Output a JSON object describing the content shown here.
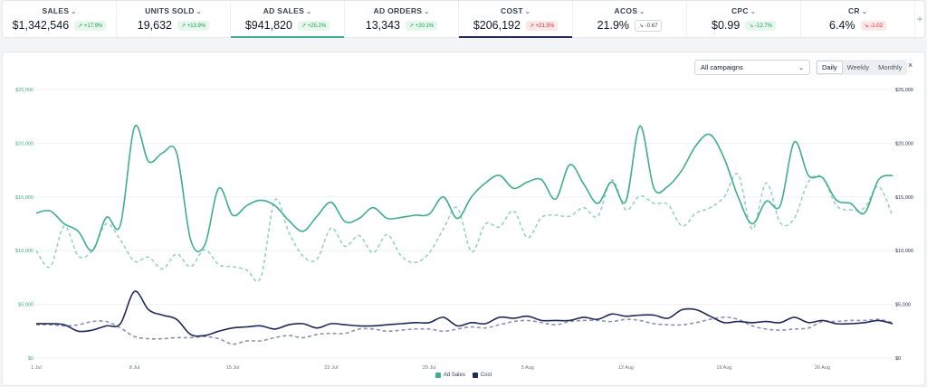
{
  "metrics": [
    {
      "label": "SALES",
      "value": "$1,342,546",
      "change": "+17.9%",
      "dir": "up"
    },
    {
      "label": "UNITS SOLD",
      "value": "19,632",
      "change": "+13.9%",
      "dir": "up"
    },
    {
      "label": "AD SALES",
      "value": "$941,820",
      "change": "+25.2%",
      "dir": "up"
    },
    {
      "label": "AD ORDERS",
      "value": "13,343",
      "change": "+20.1%",
      "dir": "up"
    },
    {
      "label": "COST",
      "value": "$206,192",
      "change": "+21.5%",
      "dir": "down"
    },
    {
      "label": "ACOS",
      "value": "21.9%",
      "change": "-0.67",
      "dir": "neutral"
    },
    {
      "label": "CPC",
      "value": "$0.99",
      "change": "-12.7%",
      "dir": "up"
    },
    {
      "label": "CR",
      "value": "6.4%",
      "change": "-1.02",
      "dir": "down"
    }
  ],
  "add_metric_icon": "+",
  "controls": {
    "campaign_select": "All campaigns",
    "periods": [
      "Daily",
      "Weekly",
      "Monthly"
    ],
    "active_period": "Daily",
    "close_icon": "×"
  },
  "colors": {
    "ad_sales": "#3fae8c",
    "ad_sales_prev": "#96d3bd",
    "cost": "#1e2a5a",
    "cost_prev": "#8e8fb5"
  },
  "chart_data": {
    "type": "line",
    "x": [
      "1 Jul",
      "2 Jul",
      "3 Jul",
      "4 Jul",
      "5 Jul",
      "6 Jul",
      "7 Jul",
      "8 Jul",
      "9 Jul",
      "10 Jul",
      "11 Jul",
      "12 Jul",
      "13 Jul",
      "14 Jul",
      "15 Jul",
      "16 Jul",
      "17 Jul",
      "18 Jul",
      "19 Jul",
      "20 Jul",
      "21 Jul",
      "22 Jul",
      "23 Jul",
      "24 Jul",
      "25 Jul",
      "26 Jul",
      "27 Jul",
      "28 Jul",
      "29 Jul",
      "30 Jul",
      "31 Jul",
      "1 Aug",
      "2 Aug",
      "3 Aug",
      "4 Aug",
      "5 Aug",
      "6 Aug",
      "7 Aug",
      "8 Aug",
      "9 Aug",
      "10 Aug",
      "11 Aug",
      "12 Aug",
      "13 Aug",
      "14 Aug",
      "15 Aug",
      "16 Aug",
      "17 Aug",
      "18 Aug",
      "19 Aug",
      "20 Aug",
      "21 Aug",
      "22 Aug",
      "23 Aug",
      "24 Aug",
      "25 Aug",
      "26 Aug",
      "27 Aug",
      "28 Aug",
      "29 Aug",
      "30 Aug",
      "31 Aug"
    ],
    "x_ticks": [
      "1 Jul",
      "8 Jul",
      "15 Jul",
      "22 Jul",
      "29 Jul",
      "5 Aug",
      "12 Aug",
      "19 Aug",
      "26 Aug"
    ],
    "ylim": [
      0,
      25000
    ],
    "y_ticks_left": [
      "$0",
      "$5,000",
      "$10,000",
      "$15,000",
      "$20,000",
      "$25,000"
    ],
    "y_ticks_right": [
      "$0",
      "$5,000",
      "$10,000",
      "$15,000",
      "$20,000",
      "$25,000"
    ],
    "grid": true,
    "legend_position": "bottom-center",
    "series": [
      {
        "name": "Ad Sales",
        "style": "solid",
        "values": [
          13500,
          13700,
          12500,
          11800,
          10000,
          13100,
          12400,
          21500,
          18300,
          19100,
          19100,
          11000,
          10500,
          15800,
          13300,
          14200,
          14700,
          14200,
          12800,
          11800,
          13200,
          14500,
          12700,
          13000,
          14000,
          13000,
          13100,
          13300,
          13400,
          15000,
          13000,
          15000,
          16300,
          17000,
          15800,
          16400,
          16600,
          14800,
          18000,
          16200,
          14400,
          16400,
          14600,
          21600,
          15800,
          16000,
          17500,
          19800,
          20800,
          18600,
          15000,
          12500,
          14600,
          14200,
          20100,
          17000,
          16800,
          14700,
          14400,
          13500,
          16600,
          17000
        ]
      },
      {
        "name": "",
        "style": "dashed",
        "values": [
          10000,
          8500,
          12300,
          9500,
          10000,
          12500,
          11000,
          9000,
          9400,
          8300,
          9700,
          8500,
          10100,
          8700,
          8500,
          8200,
          7500,
          14700,
          11700,
          9500,
          9200,
          12100,
          10400,
          11400,
          9800,
          11500,
          9500,
          8900,
          9800,
          12000,
          14000,
          9900,
          12500,
          12200,
          13700,
          11200,
          13100,
          13300,
          13200,
          14000,
          13200,
          16600,
          13800,
          15100,
          14400,
          14300,
          12300,
          13500,
          14000,
          15000,
          17100,
          12000,
          16300,
          12600,
          13000,
          16400,
          16800,
          14200,
          13800,
          14000,
          16000,
          13200
        ]
      },
      {
        "name": "Cost",
        "style": "solid",
        "values": [
          3200,
          3200,
          3100,
          2500,
          2600,
          3000,
          3200,
          6200,
          4500,
          4000,
          3600,
          2200,
          2100,
          2500,
          2800,
          2900,
          3000,
          2700,
          3100,
          3200,
          2800,
          3200,
          3100,
          3000,
          3000,
          3100,
          3200,
          3300,
          3300,
          3800,
          3000,
          3300,
          3200,
          3800,
          3700,
          3900,
          3500,
          3500,
          3500,
          3800,
          3600,
          4100,
          3900,
          4000,
          4000,
          3700,
          4500,
          4500,
          3900,
          3300,
          3400,
          3300,
          3400,
          3300,
          3800,
          3300,
          3500,
          3200,
          3200,
          3300,
          3500,
          3200
        ]
      },
      {
        "name": "",
        "style": "dashed",
        "values": [
          3100,
          3100,
          3000,
          3100,
          3400,
          3400,
          2800,
          2000,
          1800,
          1800,
          1900,
          1900,
          2000,
          1800,
          1300,
          1600,
          1600,
          1900,
          2100,
          1900,
          2200,
          2300,
          2300,
          2700,
          2700,
          2500,
          2600,
          2700,
          2700,
          2500,
          2700,
          2900,
          2800,
          3100,
          3400,
          3500,
          3300,
          3100,
          3400,
          3500,
          3500,
          3400,
          3600,
          3500,
          3200,
          3100,
          3100,
          3300,
          3600,
          3800,
          3600,
          3000,
          2700,
          2600,
          2700,
          2800,
          3400,
          3400,
          3500,
          3500,
          3600,
          3300
        ]
      }
    ]
  }
}
